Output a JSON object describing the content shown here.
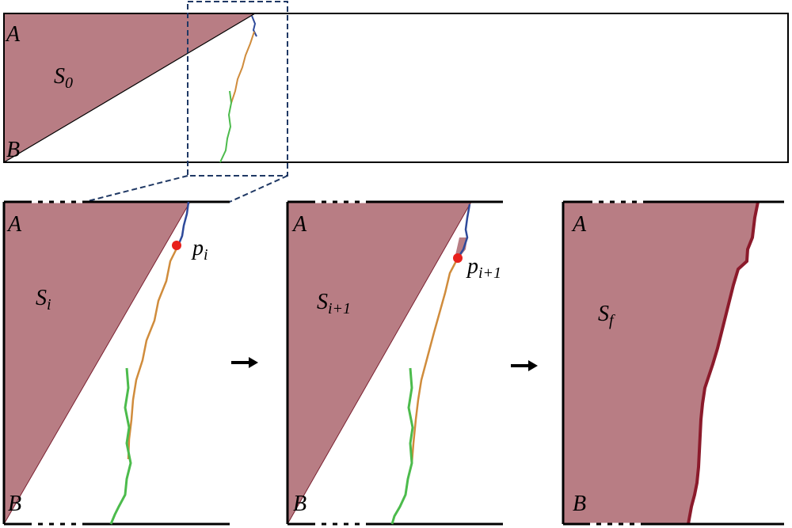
{
  "panels": [
    {
      "corner_top": "A",
      "corner_bottom": "B",
      "region": {
        "base": "S",
        "sub": "0"
      }
    },
    {
      "corner_top": "A",
      "corner_bottom": "B",
      "region": {
        "base": "S",
        "sub": "i"
      },
      "point": {
        "base": "p",
        "sub": "i"
      }
    },
    {
      "corner_top": "A",
      "corner_bottom": "B",
      "region": {
        "base": "S",
        "sub": "i+1"
      },
      "point": {
        "base": "p",
        "sub": "i+1"
      }
    },
    {
      "corner_top": "A",
      "corner_bottom": "B",
      "region": {
        "base": "S",
        "sub": "f"
      }
    }
  ]
}
